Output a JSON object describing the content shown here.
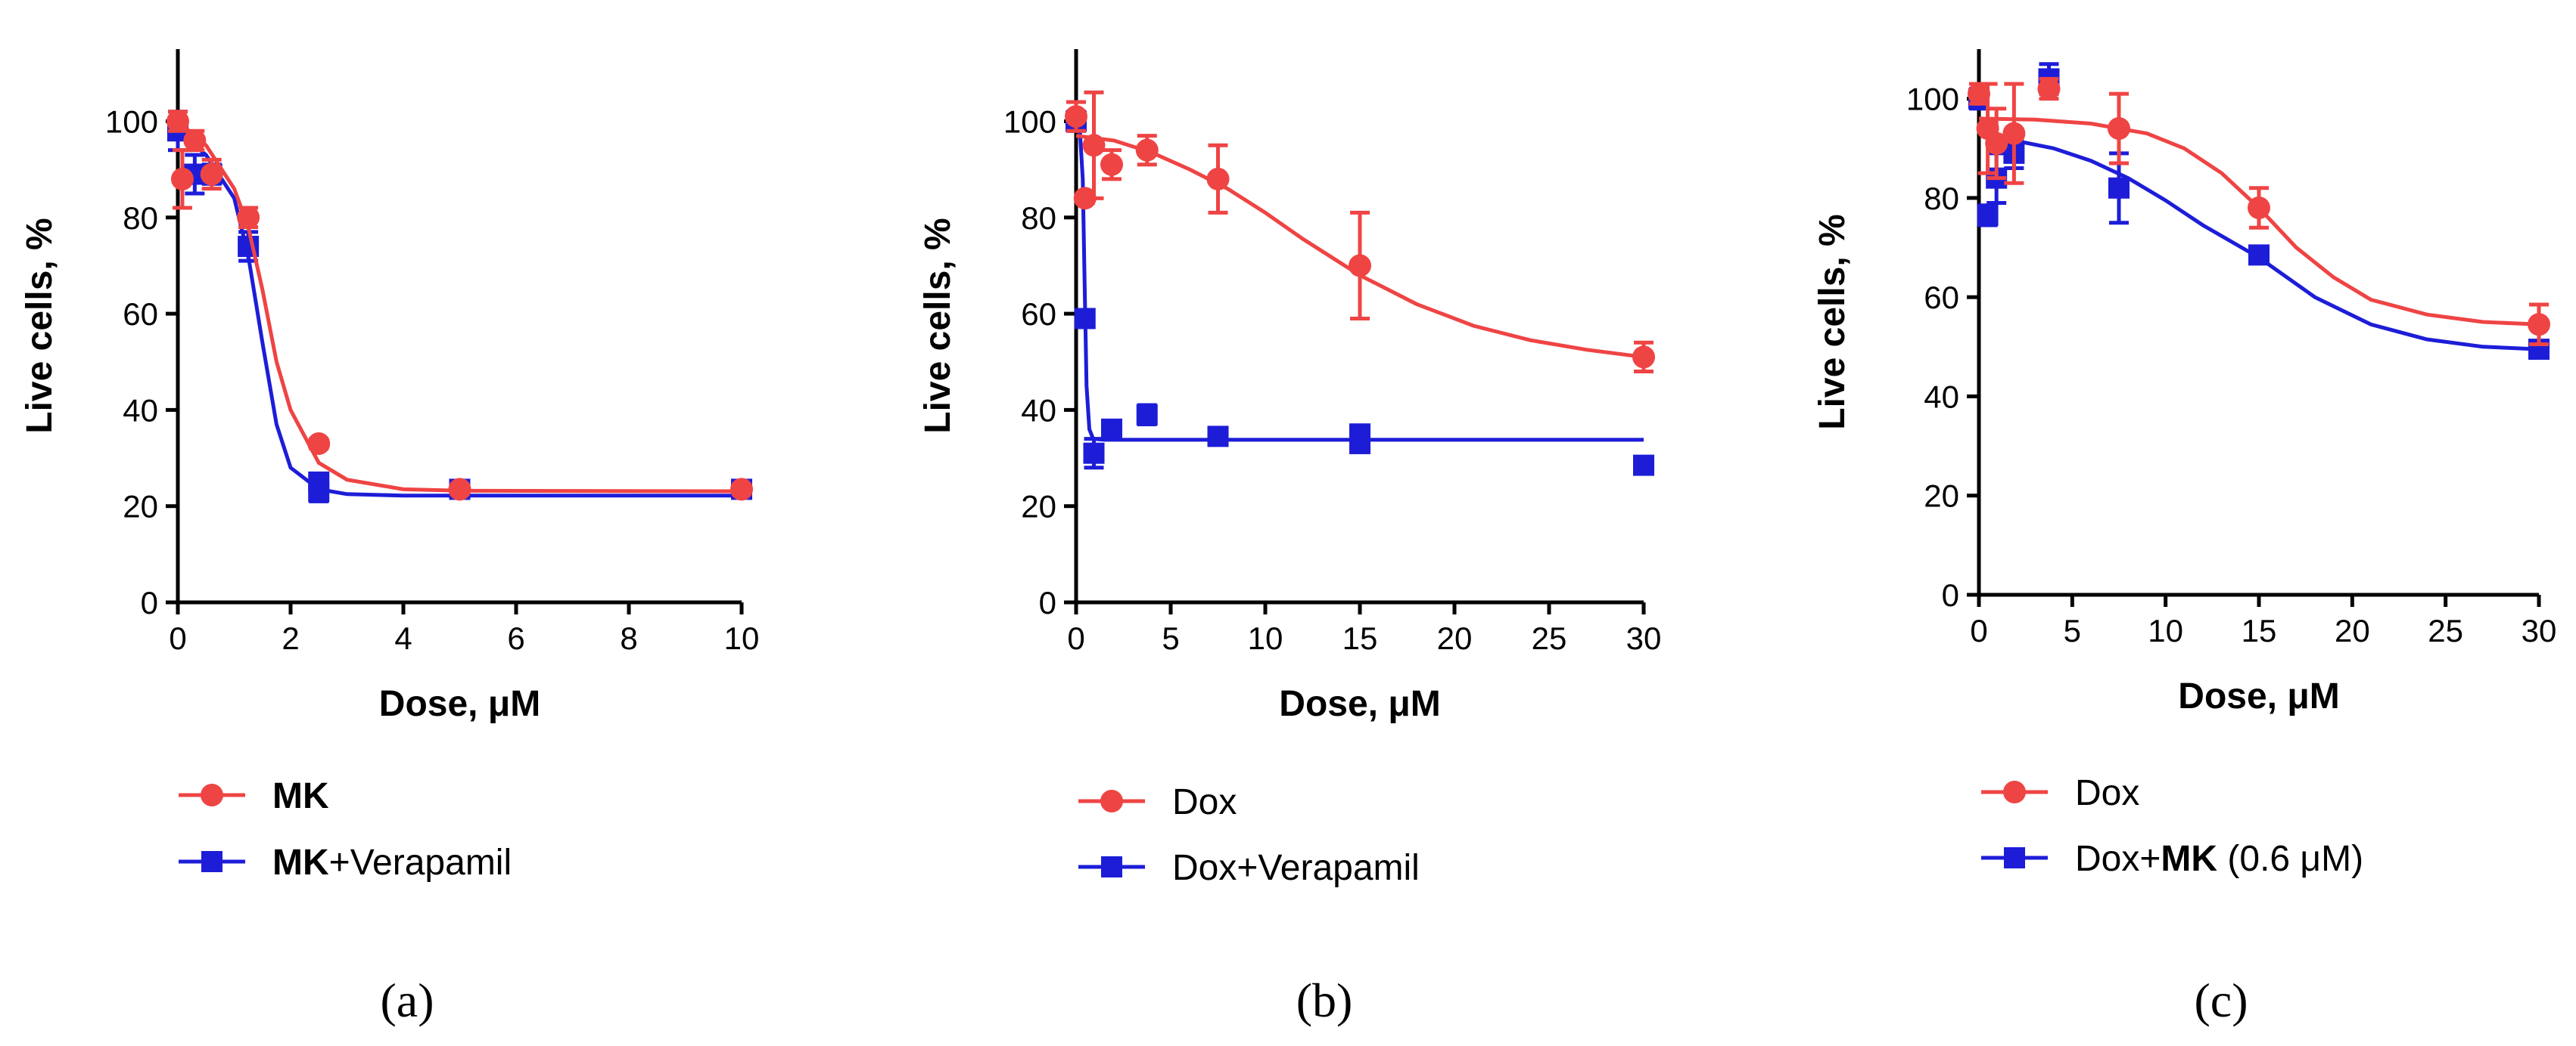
{
  "chart_data": [
    {
      "type": "scatter",
      "panel_label": "(a)",
      "xlabel": "Dose, μM",
      "ylabel": "Live cells, %",
      "xlim": [
        0,
        10
      ],
      "ylim": [
        0,
        115
      ],
      "xticks": [
        0,
        2,
        4,
        6,
        8,
        10
      ],
      "yticks": [
        0,
        20,
        40,
        60,
        80,
        100
      ],
      "legend_placement": "below",
      "series": [
        {
          "name": "MK",
          "name_parts": [
            {
              "text": "MK",
              "bold": true
            }
          ],
          "color": "#ef4444",
          "marker": "circle",
          "points": [
            {
              "x": 0,
              "y": 100,
              "err": 2
            },
            {
              "x": 0.08,
              "y": 88,
              "err": 6
            },
            {
              "x": 0.3,
              "y": 96,
              "err": 2
            },
            {
              "x": 0.6,
              "y": 89,
              "err": 3
            },
            {
              "x": 1.25,
              "y": 80,
              "err": 2
            },
            {
              "x": 2.5,
              "y": 33,
              "err": 1
            },
            {
              "x": 5,
              "y": 23.5,
              "err": 1
            },
            {
              "x": 10,
              "y": 23.5,
              "err": 1
            }
          ],
          "curve": [
            [
              0,
              100
            ],
            [
              0.5,
              95
            ],
            [
              1.0,
              86
            ],
            [
              1.25,
              78
            ],
            [
              1.5,
              65
            ],
            [
              1.75,
              50
            ],
            [
              2.0,
              40
            ],
            [
              2.5,
              29
            ],
            [
              3.0,
              25.5
            ],
            [
              4.0,
              23.5
            ],
            [
              5.0,
              23.2
            ],
            [
              10,
              23.1
            ]
          ]
        },
        {
          "name": "MK+Verapamil",
          "name_parts": [
            {
              "text": "MK",
              "bold": true
            },
            {
              "text": "+Verapamil",
              "bold": false
            }
          ],
          "color": "#1d1dd8",
          "marker": "square",
          "points": [
            {
              "x": 0,
              "y": 98,
              "err": 4
            },
            {
              "x": 0.3,
              "y": 89,
              "err": 4
            },
            {
              "x": 0.6,
              "y": 89,
              "err": 2
            },
            {
              "x": 1.25,
              "y": 74,
              "err": 3
            },
            {
              "x": 2.5,
              "y": 23,
              "err": 2
            },
            {
              "x": 2.5,
              "y": 25,
              "err": 1
            },
            {
              "x": 5,
              "y": 23.5,
              "err": 1
            },
            {
              "x": 10,
              "y": 23.5,
              "err": 1
            }
          ],
          "curve": [
            [
              0,
              98
            ],
            [
              0.5,
              93
            ],
            [
              1.0,
              84
            ],
            [
              1.25,
              72
            ],
            [
              1.5,
              54
            ],
            [
              1.75,
              37
            ],
            [
              2.0,
              28
            ],
            [
              2.5,
              23.5
            ],
            [
              3.0,
              22.5
            ],
            [
              4.0,
              22.2
            ],
            [
              10,
              22.2
            ]
          ]
        }
      ]
    },
    {
      "type": "scatter",
      "panel_label": "(b)",
      "xlabel": "Dose, μM",
      "ylabel": "Live cells, %",
      "xlim": [
        0,
        30
      ],
      "ylim": [
        0,
        115
      ],
      "xticks": [
        0,
        5,
        10,
        15,
        20,
        25,
        30
      ],
      "yticks": [
        0,
        20,
        40,
        60,
        80,
        100
      ],
      "legend_placement": "below",
      "series": [
        {
          "name": "Dox",
          "name_parts": [
            {
              "text": "Dox",
              "bold": false
            }
          ],
          "color": "#ef4444",
          "marker": "circle",
          "points": [
            {
              "x": 0,
              "y": 101,
              "err": 3
            },
            {
              "x": 0.47,
              "y": 84,
              "err": 1
            },
            {
              "x": 0.94,
              "y": 95,
              "err": 11
            },
            {
              "x": 1.88,
              "y": 91,
              "err": 3
            },
            {
              "x": 3.75,
              "y": 94,
              "err": 3
            },
            {
              "x": 7.5,
              "y": 88,
              "err": 7
            },
            {
              "x": 15,
              "y": 70,
              "err": 11
            },
            {
              "x": 30,
              "y": 51,
              "err": 3
            }
          ],
          "curve": [
            [
              0,
              97
            ],
            [
              2,
              96
            ],
            [
              4,
              93.5
            ],
            [
              6,
              90
            ],
            [
              8,
              86
            ],
            [
              10,
              81
            ],
            [
              12,
              75.5
            ],
            [
              15,
              68
            ],
            [
              18,
              62
            ],
            [
              21,
              57.5
            ],
            [
              24,
              54.5
            ],
            [
              27,
              52.5
            ],
            [
              30,
              51
            ]
          ]
        },
        {
          "name": "Dox+Verapamil",
          "name_parts": [
            {
              "text": "Dox+Verapamil",
              "bold": false
            }
          ],
          "color": "#1d1dd8",
          "marker": "square",
          "points": [
            {
              "x": 0,
              "y": 100,
              "err": 2
            },
            {
              "x": 0.47,
              "y": 59,
              "err": 1
            },
            {
              "x": 0.94,
              "y": 31,
              "err": 3
            },
            {
              "x": 1.88,
              "y": 36,
              "err": 1
            },
            {
              "x": 3.75,
              "y": 39,
              "err": 2
            },
            {
              "x": 7.5,
              "y": 34.5,
              "err": 1
            },
            {
              "x": 15,
              "y": 35,
              "err": 1
            },
            {
              "x": 15,
              "y": 33,
              "err": 1
            },
            {
              "x": 30,
              "y": 28.5,
              "err": 1
            }
          ],
          "curve": [
            [
              0,
              100
            ],
            [
              0.2,
              98
            ],
            [
              0.35,
              88
            ],
            [
              0.45,
              66
            ],
            [
              0.55,
              45
            ],
            [
              0.7,
              36
            ],
            [
              0.9,
              34
            ],
            [
              1.5,
              33.8
            ],
            [
              30,
              33.8
            ]
          ]
        }
      ]
    },
    {
      "type": "scatter",
      "panel_label": "(c)",
      "xlabel": "Dose, μM",
      "ylabel": "Live cells, %",
      "xlim": [
        0,
        30
      ],
      "ylim": [
        0,
        110
      ],
      "xticks": [
        0,
        5,
        10,
        15,
        20,
        25,
        30
      ],
      "yticks": [
        0,
        20,
        40,
        60,
        80,
        100
      ],
      "legend_placement": "below",
      "series": [
        {
          "name": "Dox",
          "name_parts": [
            {
              "text": "Dox",
              "bold": false
            }
          ],
          "color": "#ef4444",
          "marker": "circle",
          "points": [
            {
              "x": 0,
              "y": 101,
              "err": 2
            },
            {
              "x": 0.47,
              "y": 94,
              "err": 9
            },
            {
              "x": 0.94,
              "y": 91,
              "err": 7
            },
            {
              "x": 1.88,
              "y": 93,
              "err": 10
            },
            {
              "x": 3.75,
              "y": 102,
              "err": 2
            },
            {
              "x": 7.5,
              "y": 94,
              "err": 7
            },
            {
              "x": 15,
              "y": 78,
              "err": 4
            },
            {
              "x": 30,
              "y": 54.5,
              "err": 4
            }
          ],
          "curve": [
            [
              0,
              96
            ],
            [
              3,
              95.8
            ],
            [
              6,
              95
            ],
            [
              9,
              93
            ],
            [
              11,
              90
            ],
            [
              13,
              85
            ],
            [
              15,
              78
            ],
            [
              17,
              70
            ],
            [
              19,
              64
            ],
            [
              21,
              59.5
            ],
            [
              24,
              56.5
            ],
            [
              27,
              55
            ],
            [
              30,
              54.5
            ]
          ]
        },
        {
          "name": "Dox+MK (0.6 μM)",
          "name_parts": [
            {
              "text": "Dox+",
              "bold": false
            },
            {
              "text": "MK",
              "bold": true
            },
            {
              "text": " (0.6 μM)",
              "bold": false
            }
          ],
          "color": "#1d1dd8",
          "marker": "square",
          "points": [
            {
              "x": 0,
              "y": 100,
              "err": 2
            },
            {
              "x": 0.47,
              "y": 76.5,
              "err": 2
            },
            {
              "x": 0.94,
              "y": 84,
              "err": 5
            },
            {
              "x": 1.88,
              "y": 89,
              "err": 3
            },
            {
              "x": 3.75,
              "y": 104,
              "err": 3
            },
            {
              "x": 7.5,
              "y": 82,
              "err": 7
            },
            {
              "x": 15,
              "y": 68.5,
              "err": 1
            },
            {
              "x": 30,
              "y": 49.5,
              "err": 1
            }
          ],
          "curve": [
            [
              2,
              91.5
            ],
            [
              4,
              90
            ],
            [
              6,
              87.5
            ],
            [
              8,
              84
            ],
            [
              10,
              79.5
            ],
            [
              12,
              74.5
            ],
            [
              15,
              68
            ],
            [
              18,
              60
            ],
            [
              21,
              54.5
            ],
            [
              24,
              51.5
            ],
            [
              27,
              50
            ],
            [
              30,
              49.5
            ]
          ]
        }
      ]
    }
  ]
}
